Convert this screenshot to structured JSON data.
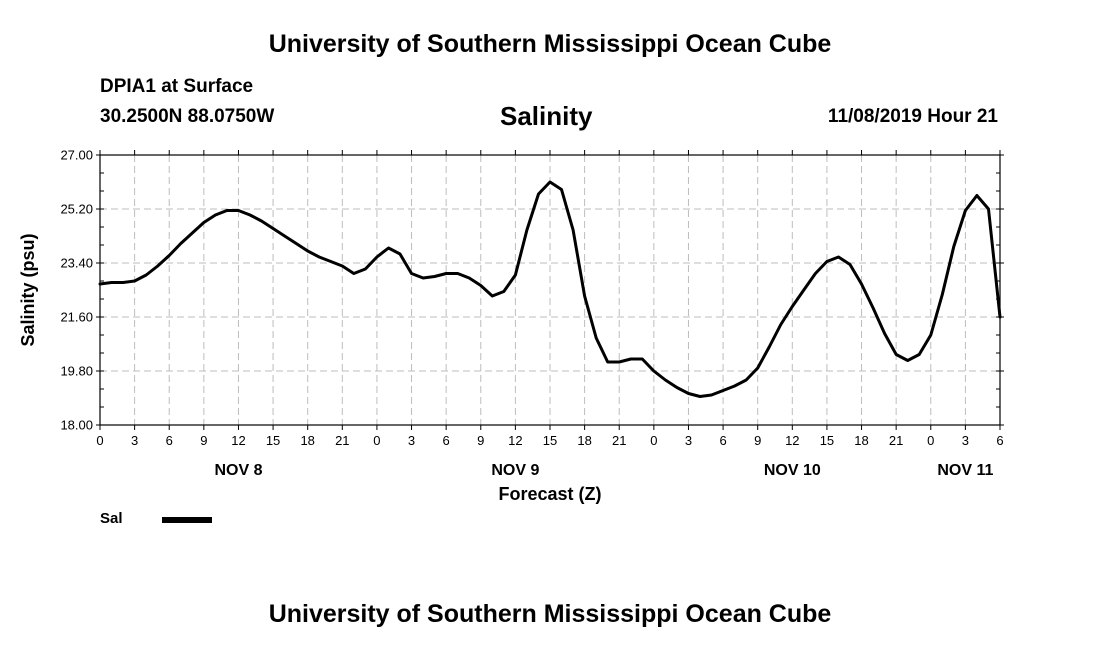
{
  "header": {
    "title": "University of Southern Mississippi Ocean Cube",
    "station": "DPIA1 at Surface",
    "coords": "30.2500N 88.0750W",
    "chart_title": "Salinity",
    "datetime": "11/08/2019 Hour 21"
  },
  "footer": {
    "title": "University of Southern Mississippi Ocean Cube"
  },
  "legend": {
    "label": "Sal",
    "color": "#000000"
  },
  "chart_data": {
    "type": "line",
    "title": "Salinity",
    "xlabel": "Forecast (Z)",
    "ylabel": "Salinity (psu)",
    "x_unit": "forecast hours from NOV 8 00Z",
    "xlim": [
      0,
      78
    ],
    "ylim": [
      18.0,
      27.0
    ],
    "grid": true,
    "y_ticks": [
      "18.00",
      "19.80",
      "21.60",
      "23.40",
      "25.20",
      "27.00"
    ],
    "x_tick_labels": [
      "0",
      "3",
      "6",
      "9",
      "12",
      "15",
      "18",
      "21",
      "0",
      "3",
      "6",
      "9",
      "12",
      "15",
      "18",
      "21",
      "0",
      "3",
      "6",
      "9",
      "12",
      "15",
      "18",
      "21",
      "0",
      "3",
      "6"
    ],
    "day_labels": [
      {
        "label": "NOV 8",
        "hour": 12
      },
      {
        "label": "NOV 9",
        "hour": 36
      },
      {
        "label": "NOV 10",
        "hour": 60
      },
      {
        "label": "NOV 11",
        "hour": 75
      }
    ],
    "series": [
      {
        "name": "Sal",
        "x": [
          0,
          1,
          2,
          3,
          4,
          5,
          6,
          7,
          8,
          9,
          10,
          11,
          12,
          13,
          14,
          15,
          16,
          17,
          18,
          19,
          20,
          21,
          22,
          23,
          24,
          25,
          26,
          27,
          28,
          29,
          30,
          31,
          32,
          33,
          34,
          35,
          36,
          37,
          38,
          39,
          40,
          41,
          42,
          43,
          44,
          45,
          46,
          47,
          48,
          49,
          50,
          51,
          52,
          53,
          54,
          55,
          56,
          57,
          58,
          59,
          60,
          61,
          62,
          63,
          64,
          65,
          66,
          67,
          68,
          69,
          70,
          71,
          72,
          73,
          74,
          75,
          76,
          77,
          78
        ],
        "values": [
          22.7,
          22.75,
          22.75,
          22.8,
          23.0,
          23.3,
          23.65,
          24.05,
          24.4,
          24.75,
          25.0,
          25.15,
          25.15,
          25.0,
          24.8,
          24.55,
          24.3,
          24.05,
          23.8,
          23.6,
          23.45,
          23.3,
          23.05,
          23.2,
          23.6,
          23.9,
          23.7,
          23.05,
          22.9,
          22.95,
          23.05,
          23.05,
          22.9,
          22.65,
          22.3,
          22.45,
          23.0,
          24.5,
          25.7,
          26.1,
          25.85,
          24.5,
          22.3,
          20.9,
          20.1,
          20.1,
          20.2,
          20.2,
          19.8,
          19.5,
          19.25,
          19.05,
          18.95,
          19.0,
          19.15,
          19.3,
          19.5,
          19.9,
          20.6,
          21.35,
          21.95,
          22.5,
          23.05,
          23.45,
          23.6,
          23.35,
          22.7,
          21.9,
          21.05,
          20.35,
          20.15,
          20.35,
          21.0,
          22.35,
          23.95,
          25.15,
          25.65,
          25.2,
          21.6
        ]
      }
    ]
  }
}
